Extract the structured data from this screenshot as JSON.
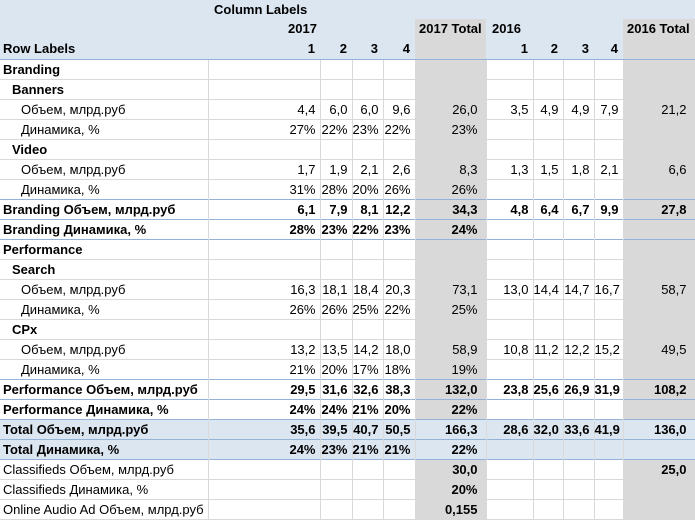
{
  "colors": {
    "header_fill": "#dce6f1",
    "total_column_fill": "#d9d9d9",
    "accent_border": "#95b3d7",
    "grid_line": "#d9d9d9"
  },
  "table": {
    "header": {
      "column_labels": "Column Labels",
      "row_labels": "Row Labels",
      "group_2017": "2017",
      "total_2017": "2017 Total",
      "group_2016": "2016",
      "total_2016": "2016 Total",
      "quarters": [
        "1",
        "2",
        "3",
        "4"
      ]
    },
    "columns_order": [
      "2017 Q1",
      "2017 Q2",
      "2017 Q3",
      "2017 Q4",
      "2017 Total",
      "2016 Q1",
      "2016 Q2",
      "2016 Q3",
      "2016 Q4",
      "2016 Total"
    ],
    "rows": [
      {
        "label": "Branding",
        "type": "section",
        "cells": [
          "",
          "",
          "",
          "",
          "",
          "",
          "",
          "",
          "",
          ""
        ]
      },
      {
        "label": "Banners",
        "type": "subsection",
        "cells": [
          "",
          "",
          "",
          "",
          "",
          "",
          "",
          "",
          "",
          ""
        ]
      },
      {
        "label": "Объем, млрд.руб",
        "type": "item",
        "cells": [
          "4,4",
          "6,0",
          "6,0",
          "9,6",
          "26,0",
          "3,5",
          "4,9",
          "4,9",
          "7,9",
          "21,2"
        ]
      },
      {
        "label": "Динамика, %",
        "type": "item",
        "cells": [
          "27%",
          "22%",
          "23%",
          "22%",
          "23%",
          "",
          "",
          "",
          "",
          ""
        ]
      },
      {
        "label": "Video",
        "type": "subsection",
        "cells": [
          "",
          "",
          "",
          "",
          "",
          "",
          "",
          "",
          "",
          ""
        ]
      },
      {
        "label": "Объем, млрд.руб",
        "type": "item",
        "cells": [
          "1,7",
          "1,9",
          "2,1",
          "2,6",
          "8,3",
          "1,3",
          "1,5",
          "1,8",
          "2,1",
          "6,6"
        ]
      },
      {
        "label": "Динамика, %",
        "type": "item",
        "cells": [
          "31%",
          "28%",
          "20%",
          "26%",
          "26%",
          "",
          "",
          "",
          "",
          ""
        ]
      },
      {
        "label": "Branding Объем, млрд.руб",
        "type": "subtotal",
        "border_top": true,
        "cells": [
          "6,1",
          "7,9",
          "8,1",
          "12,2",
          "34,3",
          "4,8",
          "6,4",
          "6,7",
          "9,9",
          "27,8"
        ]
      },
      {
        "label": "Branding Динамика, %",
        "type": "subtotal",
        "border_top": true,
        "cells": [
          "28%",
          "23%",
          "22%",
          "23%",
          "24%",
          "",
          "",
          "",
          "",
          ""
        ]
      },
      {
        "label": "Performance",
        "type": "section",
        "border_top": true,
        "cells": [
          "",
          "",
          "",
          "",
          "",
          "",
          "",
          "",
          "",
          ""
        ]
      },
      {
        "label": "Search",
        "type": "subsection",
        "cells": [
          "",
          "",
          "",
          "",
          "",
          "",
          "",
          "",
          "",
          ""
        ]
      },
      {
        "label": "Объем, млрд.руб",
        "type": "item",
        "cells": [
          "16,3",
          "18,1",
          "18,4",
          "20,3",
          "73,1",
          "13,0",
          "14,4",
          "14,7",
          "16,7",
          "58,7"
        ]
      },
      {
        "label": "Динамика, %",
        "type": "item",
        "cells": [
          "26%",
          "26%",
          "25%",
          "22%",
          "25%",
          "",
          "",
          "",
          "",
          ""
        ]
      },
      {
        "label": "CPx",
        "type": "subsection",
        "cells": [
          "",
          "",
          "",
          "",
          "",
          "",
          "",
          "",
          "",
          ""
        ]
      },
      {
        "label": "Объем, млрд.руб",
        "type": "item",
        "cells": [
          "13,2",
          "13,5",
          "14,2",
          "18,0",
          "58,9",
          "10,8",
          "11,2",
          "12,2",
          "15,2",
          "49,5"
        ]
      },
      {
        "label": "Динамика, %",
        "type": "item",
        "cells": [
          "21%",
          "20%",
          "17%",
          "18%",
          "19%",
          "",
          "",
          "",
          "",
          ""
        ]
      },
      {
        "label": "Performance Объем, млрд.руб",
        "type": "subtotal",
        "border_top": true,
        "cells": [
          "29,5",
          "31,6",
          "32,6",
          "38,3",
          "132,0",
          "23,8",
          "25,6",
          "26,9",
          "31,9",
          "108,2"
        ]
      },
      {
        "label": "Performance Динамика, %",
        "type": "subtotal",
        "border_top": true,
        "cells": [
          "24%",
          "24%",
          "21%",
          "20%",
          "22%",
          "",
          "",
          "",
          "",
          ""
        ]
      },
      {
        "label": "Total Объем, млрд.руб",
        "type": "total",
        "border_top": true,
        "cells": [
          "35,6",
          "39,5",
          "40,7",
          "50,5",
          "166,3",
          "28,6",
          "32,0",
          "33,6",
          "41,9",
          "136,0"
        ]
      },
      {
        "label": "Total Динамика, %",
        "type": "total",
        "border_top": true,
        "cells": [
          "24%",
          "23%",
          "21%",
          "21%",
          "22%",
          "",
          "",
          "",
          "",
          ""
        ]
      },
      {
        "label": "Classifieds Объем, млрд.руб",
        "type": "extra",
        "border_top": true,
        "cells": [
          "",
          "",
          "",
          "",
          "30,0",
          "",
          "",
          "",
          "",
          "25,0"
        ]
      },
      {
        "label": "Classifieds Динамика, %",
        "type": "extra",
        "cells": [
          "",
          "",
          "",
          "",
          "20%",
          "",
          "",
          "",
          "",
          ""
        ]
      },
      {
        "label": "Online Audio Ad Объем, млрд.руб",
        "type": "extra",
        "cells": [
          "",
          "",
          "",
          "",
          "0,155",
          "",
          "",
          "",
          "",
          ""
        ]
      }
    ]
  }
}
